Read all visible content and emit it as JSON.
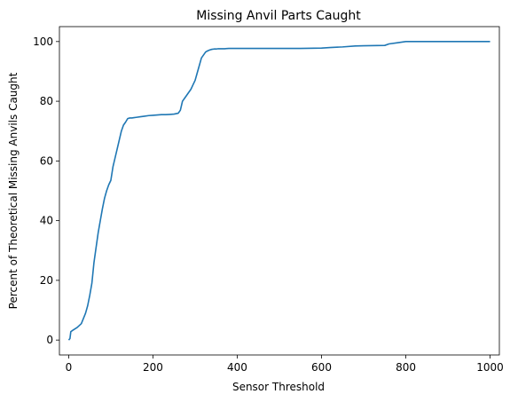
{
  "chart_data": {
    "type": "line",
    "title": "Missing Anvil Parts Caught",
    "xlabel": "Sensor Threshold",
    "ylabel": "Percent of Theoretical Missing Anvils Caught",
    "xlim": [
      -22,
      1022
    ],
    "ylim": [
      -5,
      105
    ],
    "xticks": [
      0,
      200,
      400,
      600,
      800,
      1000
    ],
    "yticks": [
      0,
      20,
      40,
      60,
      80,
      100
    ],
    "grid": false,
    "line_color": "#1f77b4",
    "series": [
      {
        "x": [
          0,
          3,
          5,
          10,
          20,
          30,
          40,
          45,
          50,
          55,
          60,
          65,
          70,
          75,
          80,
          85,
          90,
          95,
          100,
          105,
          110,
          115,
          120,
          125,
          130,
          135,
          140,
          145,
          150,
          155,
          160,
          170,
          180,
          190,
          200,
          210,
          220,
          230,
          240,
          250,
          260,
          265,
          270,
          275,
          280,
          285,
          290,
          295,
          300,
          305,
          310,
          315,
          320,
          325,
          330,
          335,
          340,
          345,
          350,
          355,
          360,
          370,
          380,
          390,
          400,
          450,
          500,
          550,
          600,
          620,
          650,
          680,
          700,
          750,
          760,
          780,
          800,
          850,
          900,
          950,
          1000
        ],
        "y": [
          0,
          0.5,
          2.8,
          3.3,
          4.2,
          5.5,
          9,
          11.5,
          15,
          19,
          26,
          31,
          36,
          40,
          44,
          47.5,
          50,
          52,
          53.5,
          58,
          61,
          64,
          67,
          70,
          72,
          73,
          74.2,
          74.4,
          74.4,
          74.5,
          74.6,
          74.8,
          75,
          75.2,
          75.3,
          75.4,
          75.5,
          75.5,
          75.6,
          75.7,
          76,
          77,
          80,
          81,
          82,
          83,
          84,
          85.5,
          87,
          89.5,
          92,
          94.5,
          95.5,
          96.5,
          96.9,
          97.2,
          97.4,
          97.5,
          97.5,
          97.6,
          97.6,
          97.6,
          97.7,
          97.7,
          97.7,
          97.7,
          97.7,
          97.7,
          97.8,
          98,
          98.2,
          98.5,
          98.6,
          98.7,
          99.2,
          99.6,
          100,
          100,
          100,
          100,
          100
        ]
      }
    ]
  }
}
